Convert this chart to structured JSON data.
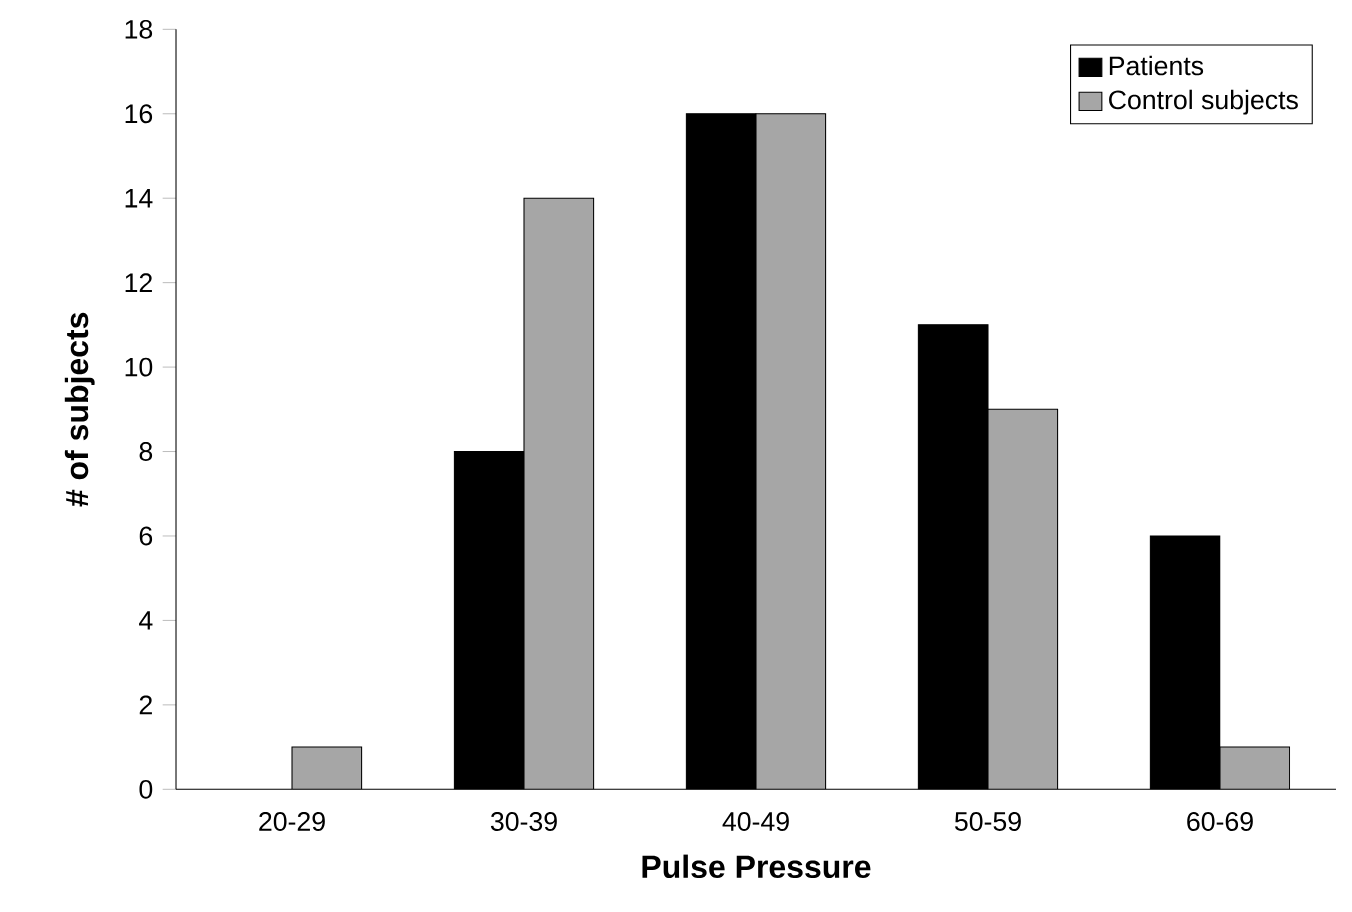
{
  "chart_data": {
    "type": "bar",
    "xlabel": "Pulse Pressure",
    "ylabel": "# of subjects",
    "categories": [
      "20-29",
      "30-39",
      "40-49",
      "50-59",
      "60-69"
    ],
    "series": [
      {
        "name": "Patients",
        "color": "#000000",
        "values": [
          null,
          8,
          16,
          11,
          6
        ]
      },
      {
        "name": "Control subjects",
        "color": "#a6a6a6",
        "values": [
          1,
          14,
          16,
          9,
          1
        ]
      }
    ],
    "ylim": [
      0,
      18
    ],
    "yticks": [
      0,
      2,
      4,
      6,
      8,
      10,
      12,
      14,
      16,
      18
    ],
    "grid": false,
    "legend": "top right"
  }
}
